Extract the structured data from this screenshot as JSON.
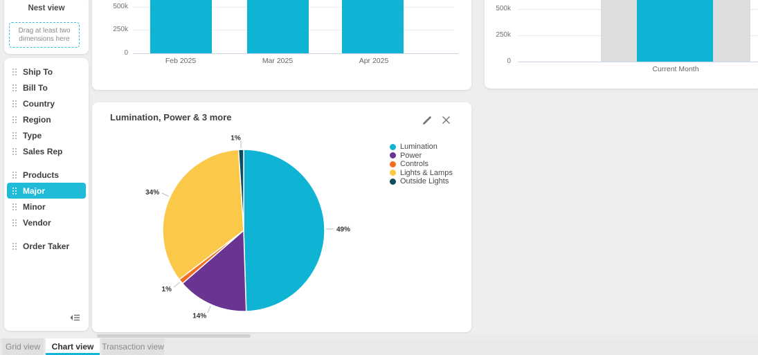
{
  "sidebar": {
    "title": "Nest view",
    "dropzone_text_line1": "Drag at least two",
    "dropzone_text_line2": "dimensions here",
    "items": [
      {
        "label": "Ship To"
      },
      {
        "label": "Bill To"
      },
      {
        "label": "Country"
      },
      {
        "label": "Region"
      },
      {
        "label": "Type"
      },
      {
        "label": "Sales Rep"
      },
      {
        "label": "Products"
      },
      {
        "label": "Major",
        "active": true
      },
      {
        "label": "Minor"
      },
      {
        "label": "Vendor"
      },
      {
        "label": "Order Taker"
      }
    ],
    "active_item": "Major"
  },
  "pie_card": {
    "title": "Lumination, Power & 3 more"
  },
  "tabs": [
    {
      "label": "Grid view",
      "active": false
    },
    {
      "label": "Chart view",
      "active": true
    },
    {
      "label": "Transaction view",
      "active": false
    }
  ],
  "colors": {
    "accent": "#14b4d9",
    "bar_cyan": "#0fb4d4",
    "bar_gray": "#dcdddd",
    "active_item_bg": "#1fbbd9"
  },
  "chart_data": [
    {
      "type": "bar",
      "title": "",
      "categories": [
        "Feb 2025",
        "Mar 2025",
        "Apr 2025"
      ],
      "values": [
        null,
        null,
        null
      ],
      "note": "all three bars exceed the 500k top gridline; bar tops are cut off above the visible screenshot area",
      "yticks": [
        "500k",
        "250k",
        "0"
      ],
      "ylim": [
        0,
        500000
      ],
      "grid": true,
      "bar_color": "#0fb4d4"
    },
    {
      "type": "bar",
      "title": "",
      "categories": [
        "Current Month"
      ],
      "series": [
        {
          "name": "bar-1",
          "color": "#dcdddd",
          "values": [
            null
          ]
        },
        {
          "name": "bar-2",
          "color": "#0fb4d4",
          "values": [
            null
          ]
        },
        {
          "name": "bar-3",
          "color": "#dcdddd",
          "values": [
            null
          ]
        }
      ],
      "note": "grouped bars (gray, cyan, gray) all exceed the 500k top gridline; tops cut off above visible area",
      "yticks": [
        "500k",
        "250k",
        "0"
      ],
      "ylim": [
        0,
        500000
      ],
      "grid": true
    },
    {
      "type": "pie",
      "title": "Lumination, Power & 3 more",
      "labels": [
        "Lumination",
        "Power",
        "Controls",
        "Lights & Lamps",
        "Outside Lights"
      ],
      "values": [
        49,
        14,
        1,
        34,
        1
      ],
      "value_labels": [
        "49%",
        "14%",
        "1%",
        "34%",
        "1%"
      ],
      "colors": [
        "#0fb4d4",
        "#6a3493",
        "#f26f21",
        "#fbc84a",
        "#0d4d5e"
      ],
      "legend_position": "right",
      "start_angle": "top, clockwise"
    }
  ]
}
